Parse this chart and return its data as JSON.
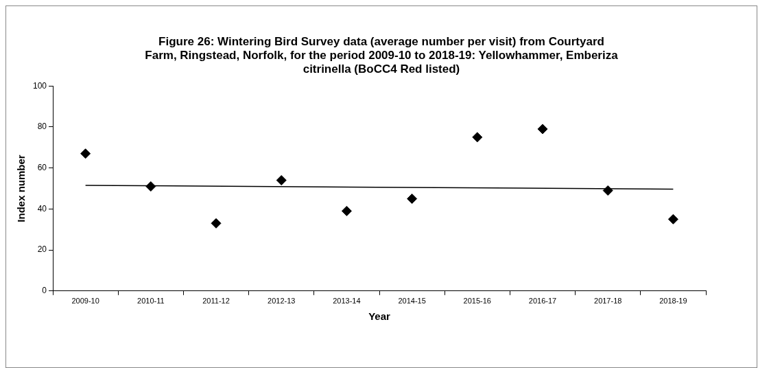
{
  "chart_data": {
    "type": "scatter",
    "title": "Figure 26: Wintering Bird Survey data (average number per visit) from Courtyard Farm, Ringstead, Norfolk, for the period 2009-10 to 2018-19: Yellowhammer, Emberiza citrinella (BoCC4 Red listed)",
    "xlabel": "Year",
    "ylabel": "Index number",
    "categories": [
      "2009-10",
      "2010-11",
      "2011-12",
      "2012-13",
      "2013-14",
      "2014-15",
      "2015-16",
      "2016-17",
      "2017-18",
      "2018-19"
    ],
    "series": [
      {
        "color": "#000000",
        "marker": "diamond",
        "values": [
          67,
          51,
          33,
          54,
          39,
          45,
          75,
          79,
          49,
          35
        ]
      },
      {
        "type": "line",
        "color": "#000000",
        "marker": "none",
        "values": [
          51.5,
          null,
          null,
          null,
          null,
          null,
          null,
          null,
          null,
          49.7
        ]
      }
    ],
    "ylim": [
      0,
      100
    ],
    "yticks": [
      0,
      20,
      40,
      60,
      80,
      100
    ],
    "grid": false,
    "legend": false
  }
}
